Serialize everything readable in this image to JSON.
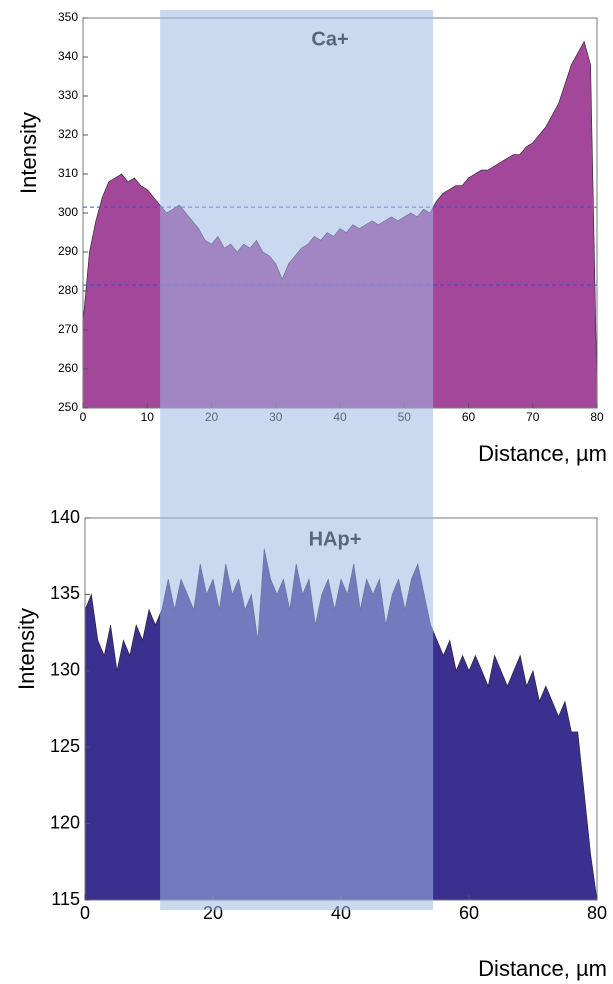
{
  "chart_data": [
    {
      "type": "area",
      "title": "Ca+",
      "x_label": "Distance, µm",
      "y_label": "Intensity",
      "x": [
        0,
        1,
        2,
        3,
        4,
        5,
        6,
        7,
        8,
        9,
        10,
        11,
        12,
        13,
        14,
        15,
        16,
        17,
        18,
        19,
        20,
        21,
        22,
        23,
        24,
        25,
        26,
        27,
        28,
        29,
        30,
        31,
        32,
        33,
        34,
        35,
        36,
        37,
        38,
        39,
        40,
        41,
        42,
        43,
        44,
        45,
        46,
        47,
        48,
        49,
        50,
        51,
        52,
        53,
        54,
        55,
        56,
        57,
        58,
        59,
        60,
        61,
        62,
        63,
        64,
        65,
        66,
        67,
        68,
        69,
        70,
        71,
        72,
        73,
        74,
        75,
        76,
        77,
        78,
        79,
        80
      ],
      "values": [
        272,
        290,
        298,
        304,
        308,
        309,
        310,
        308,
        309,
        307,
        306,
        304,
        302,
        300,
        301,
        302,
        300,
        298,
        296,
        293,
        292,
        294,
        291,
        292,
        290,
        292,
        291,
        293,
        290,
        289,
        287,
        283,
        287,
        289,
        291,
        292,
        294,
        293,
        295,
        294,
        296,
        295,
        297,
        296,
        297,
        298,
        297,
        298,
        299,
        298,
        299,
        300,
        299,
        301,
        300,
        303,
        305,
        306,
        307,
        307,
        309,
        310,
        311,
        311,
        312,
        313,
        314,
        315,
        315,
        317,
        318,
        320,
        322,
        325,
        328,
        333,
        338,
        341,
        344,
        338,
        255
      ],
      "color": "#a3479b",
      "xlim": [
        0,
        80
      ],
      "xticks": [
        0,
        10,
        20,
        30,
        40,
        50,
        60,
        70,
        80
      ],
      "ylim": [
        250,
        350
      ],
      "yticks": [
        250,
        260,
        270,
        280,
        290,
        300,
        310,
        320,
        330,
        340,
        350
      ],
      "reference_lines": [
        301.5,
        281.5
      ],
      "highlight_x": [
        12,
        54.5
      ]
    },
    {
      "type": "area",
      "title": "HAp+",
      "x_label": "Distance, µm",
      "y_label": "Intensity",
      "x": [
        0,
        1,
        2,
        3,
        4,
        5,
        6,
        7,
        8,
        9,
        10,
        11,
        12,
        13,
        14,
        15,
        16,
        17,
        18,
        19,
        20,
        21,
        22,
        23,
        24,
        25,
        26,
        27,
        28,
        29,
        30,
        31,
        32,
        33,
        34,
        35,
        36,
        37,
        38,
        39,
        40,
        41,
        42,
        43,
        44,
        45,
        46,
        47,
        48,
        49,
        50,
        51,
        52,
        53,
        54,
        55,
        56,
        57,
        58,
        59,
        60,
        61,
        62,
        63,
        64,
        65,
        66,
        67,
        68,
        69,
        70,
        71,
        72,
        73,
        74,
        75,
        76,
        77,
        78,
        79,
        80
      ],
      "values": [
        134,
        135,
        132,
        131,
        133,
        130,
        132,
        131,
        133,
        132,
        134,
        133,
        134,
        136,
        134,
        136,
        135,
        134,
        137,
        135,
        136,
        134,
        137,
        135,
        136,
        134,
        135,
        132,
        138,
        136,
        135,
        136,
        134,
        137,
        135,
        136,
        133,
        135,
        136,
        134,
        136,
        135,
        137,
        134,
        136,
        135,
        136,
        133,
        135,
        136,
        134,
        136,
        137,
        135,
        133,
        132,
        131,
        132,
        130,
        131,
        130,
        131,
        130,
        129,
        131,
        130,
        129,
        130,
        131,
        129,
        130,
        128,
        129,
        128,
        127,
        128,
        126,
        126,
        122,
        118,
        115
      ],
      "color": "#3b2f8f",
      "xlim": [
        0,
        80
      ],
      "xticks": [
        0,
        20,
        40,
        60,
        80
      ],
      "ylim": [
        115,
        140
      ],
      "yticks": [
        115,
        120,
        125,
        130,
        135,
        140
      ]
    }
  ]
}
